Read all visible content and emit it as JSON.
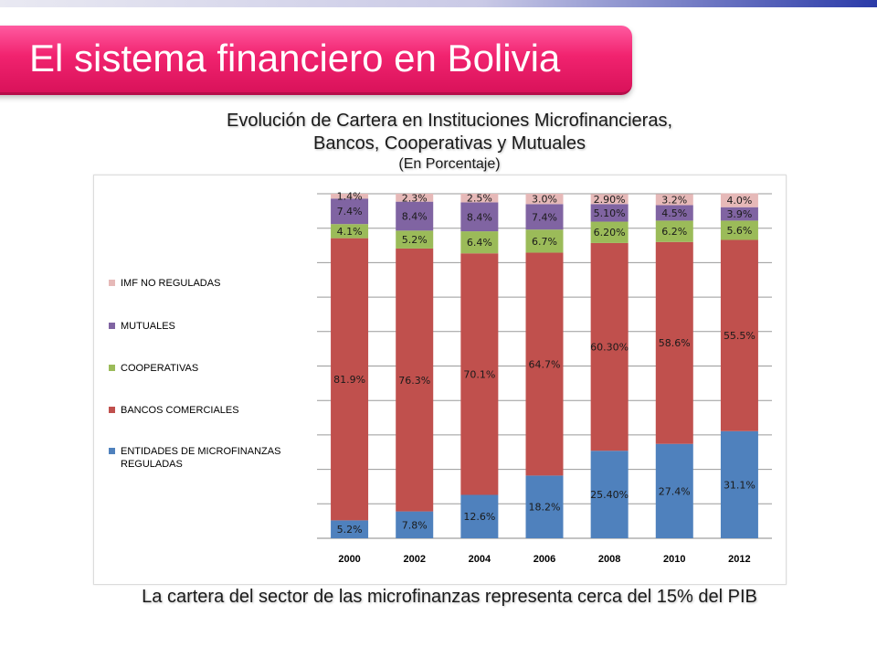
{
  "slide": {
    "title": "El sistema financiero en Bolivia",
    "note": "La cartera del sector de las microfinanzas representa cerca del 15% del PIB"
  },
  "chart_heading": {
    "line1": "Evolución de Cartera en Instituciones Microfinancieras,",
    "line2": "Bancos, Cooperativas y Mutuales",
    "line3": "(En Porcentaje)"
  },
  "colors": {
    "imf_no_reguladas": "#e6b9b8",
    "mutuales": "#8064a2",
    "cooperativas": "#9bbb59",
    "bancos": "#c0504d",
    "entidades": "#4f81bd",
    "banner": "#f1236f"
  },
  "chart_data": {
    "type": "bar",
    "stacked": true,
    "categories": [
      "2000",
      "2002",
      "2004",
      "2006",
      "2008",
      "2010",
      "2012"
    ],
    "ylim": [
      0,
      100
    ],
    "grid": true,
    "legend": "left",
    "series": [
      {
        "name": "ENTIDADES DE MICROFINANZAS REGULADAS",
        "key": "entidades",
        "values": [
          5.2,
          7.8,
          12.6,
          18.2,
          25.4,
          27.4,
          31.1
        ],
        "labels": [
          "5.2%",
          "7.8%",
          "12.6%",
          "18.2%",
          "25.40%",
          "27.4%",
          "31.1%"
        ]
      },
      {
        "name": "BANCOS COMERCIALES",
        "key": "bancos",
        "values": [
          81.9,
          76.3,
          70.1,
          64.7,
          60.3,
          58.6,
          55.5
        ],
        "labels": [
          "81.9%",
          "76.3%",
          "70.1%",
          "64.7%",
          "60.30%",
          "58.6%",
          "55.5%"
        ]
      },
      {
        "name": "COOPERATIVAS",
        "key": "cooperativas",
        "values": [
          4.1,
          5.2,
          6.4,
          6.7,
          6.2,
          6.2,
          5.6
        ],
        "labels": [
          "4.1%",
          "5.2%",
          "6.4%",
          "6.7%",
          "6.20%",
          "6.2%",
          "5.6%"
        ]
      },
      {
        "name": "MUTUALES",
        "key": "mutuales",
        "values": [
          7.4,
          8.4,
          8.4,
          7.4,
          5.1,
          4.5,
          3.9
        ],
        "labels": [
          "7.4%",
          "8.4%",
          "8.4%",
          "7.4%",
          "5.10%",
          "4.5%",
          "3.9%"
        ]
      },
      {
        "name": "IMF NO REGULADAS",
        "key": "imf_no_reguladas",
        "values": [
          1.4,
          2.3,
          2.5,
          3.0,
          2.9,
          3.2,
          4.0
        ],
        "labels": [
          "1.4%",
          "2.3%",
          "2.5%",
          "3.0%",
          "2.90%",
          "3.2%",
          "4.0%"
        ]
      }
    ]
  }
}
